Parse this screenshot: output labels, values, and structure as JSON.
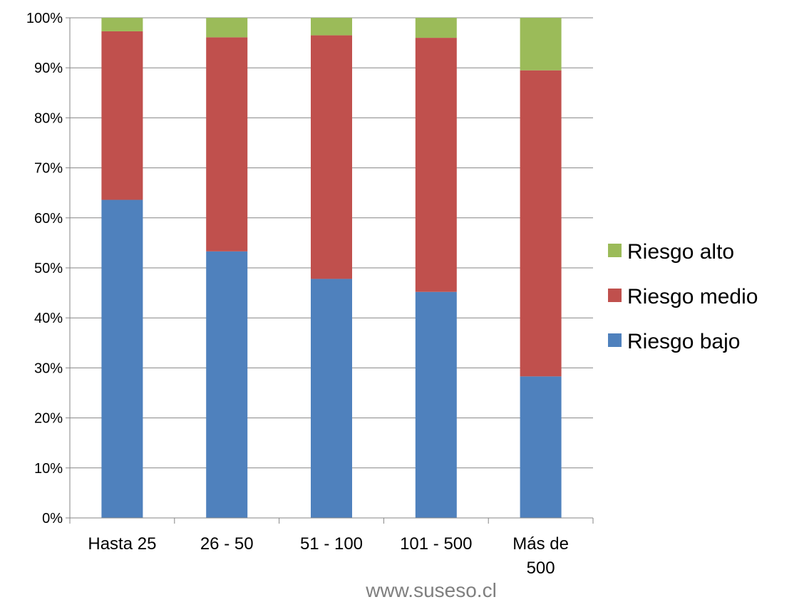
{
  "chart_data": {
    "type": "bar",
    "stacked": true,
    "percent": true,
    "categories": [
      [
        "Hasta 25"
      ],
      [
        "26 - 50"
      ],
      [
        "51 - 100"
      ],
      [
        "101 - 500"
      ],
      [
        "Más de",
        "500"
      ]
    ],
    "series": [
      {
        "name": "Riesgo bajo",
        "color": "#4F81BD",
        "values": [
          63.6,
          53.3,
          47.8,
          45.2,
          28.3
        ]
      },
      {
        "name": "Riesgo medio",
        "color": "#C0504D",
        "values": [
          33.7,
          42.8,
          48.7,
          50.8,
          61.2
        ]
      },
      {
        "name": "Riesgo alto",
        "color": "#9BBB59",
        "values": [
          2.7,
          3.9,
          3.5,
          4.0,
          10.5
        ]
      }
    ],
    "ylim": [
      0,
      100
    ],
    "yticks": [
      "0%",
      "10%",
      "20%",
      "30%",
      "40%",
      "50%",
      "60%",
      "70%",
      "80%",
      "90%",
      "100%"
    ],
    "grid": true,
    "legend_position": "right",
    "legend_order": [
      "Riesgo alto",
      "Riesgo medio",
      "Riesgo bajo"
    ]
  },
  "watermark": "www.suseso.cl",
  "colors": {
    "grid": "#868686",
    "axis": "#868686"
  }
}
